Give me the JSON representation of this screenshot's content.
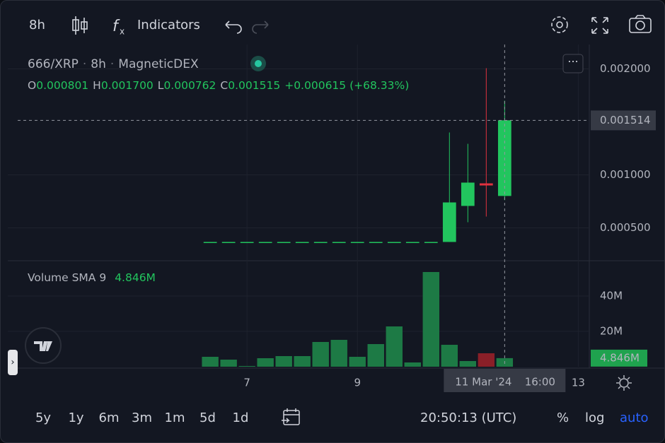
{
  "toolbar": {
    "interval": "8h",
    "indicators": "Indicators"
  },
  "legend": {
    "symbol": "666/XRP",
    "interval": "8h",
    "exchange": "MagneticDEX",
    "o_label": "O",
    "open": "0.000801",
    "h_label": "H",
    "high": "0.001700",
    "l_label": "L",
    "low": "0.000762",
    "c_label": "C",
    "close": "0.001515",
    "change": "+0.000615 (+68.33%)"
  },
  "chart_data": [
    {
      "type": "candlestick",
      "up_color": "#22c55e",
      "down_color": "#e0313f",
      "open": [
        0.000367,
        0.000367,
        0.000367,
        0.000367,
        0.000367,
        0.000367,
        0.000367,
        0.000367,
        0.000367,
        0.000367,
        0.000367,
        0.000367,
        0.000367,
        0.000367,
        0.000707,
        0.00092,
        0.000801
      ],
      "high": [
        0.000367,
        0.000367,
        0.000367,
        0.000367,
        0.000367,
        0.000367,
        0.000367,
        0.000367,
        0.000367,
        0.000367,
        0.000367,
        0.000367,
        0.000367,
        0.0014,
        0.001293,
        0.002007,
        0.0017
      ],
      "low": [
        0.000367,
        0.000367,
        0.000367,
        0.000367,
        0.000367,
        0.000367,
        0.000367,
        0.000367,
        0.000367,
        0.000367,
        0.000367,
        0.000367,
        0.000367,
        0.000367,
        0.000553,
        0.000607,
        0.000762
      ],
      "close": [
        0.000367,
        0.000367,
        0.000367,
        0.000367,
        0.000367,
        0.000367,
        0.000367,
        0.000367,
        0.000367,
        0.000367,
        0.000367,
        0.000367,
        0.000367,
        0.00074,
        0.000927,
        0.0009,
        0.001515
      ],
      "ylim": [
        0.00019,
        0.00223
      ],
      "yticks": [
        {
          "value": 0.0005,
          "label": "0.000500"
        },
        {
          "value": 0.001,
          "label": "0.001000"
        },
        {
          "value": 0.002,
          "label": "0.002000"
        }
      ],
      "xlim": [
        -11,
        20.6
      ],
      "xticks": [
        {
          "value": 2,
          "label": "7"
        },
        {
          "value": 8,
          "label": "9"
        },
        {
          "value": 20,
          "label": "13"
        }
      ],
      "crosshair": {
        "price": {
          "value": 0.001514,
          "label": "0.001514"
        },
        "time": {
          "value": 16,
          "label": "11 Mar '24",
          "time": "16:00"
        }
      }
    },
    {
      "type": "bar",
      "title": "Volume SMA 9",
      "last": {
        "value": 4846000,
        "label": "4.846M"
      },
      "values": [
        5600000,
        4000000,
        400000,
        4800000,
        6000000,
        6000000,
        14000000,
        15200000,
        5600000,
        12800000,
        22800000,
        2400000,
        53600000,
        12400000,
        3200000,
        7600000,
        4846000
      ],
      "ylim": [
        0,
        60000000
      ],
      "yticks": [
        {
          "value": 20000000,
          "label": "20M"
        },
        {
          "value": 40000000,
          "label": "40M"
        }
      ]
    }
  ],
  "bottom": {
    "ranges": [
      "5y",
      "1y",
      "6m",
      "3m",
      "1m",
      "5d",
      "1d"
    ],
    "clock": "20:50:13 (UTC)",
    "percent": "%",
    "log": "log",
    "auto": "auto"
  }
}
